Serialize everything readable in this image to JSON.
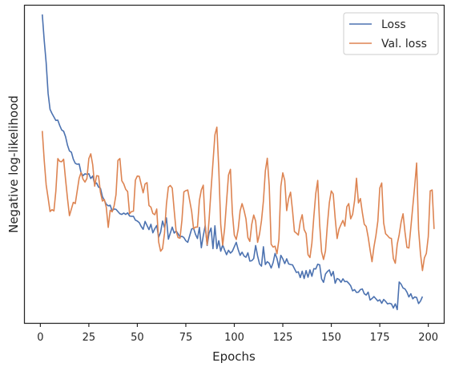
{
  "chart_data": {
    "type": "line",
    "xlabel": "Epochs",
    "ylabel": "Negative log-likelihood",
    "xlim": [
      -8,
      208
    ],
    "ylim": [
      0,
      100
    ],
    "x_ticks": [
      0,
      25,
      50,
      75,
      100,
      125,
      150,
      175,
      200
    ],
    "y_ticks_shown": false,
    "grid": false,
    "legend_position": "top-right",
    "series": [
      {
        "name": "Loss",
        "color": "#4c72b0",
        "x_start": 1,
        "values": [
          97.2,
          89.0,
          82.0,
          72.3,
          67.3,
          66.0,
          64.9,
          63.8,
          63.9,
          62.2,
          60.8,
          60.4,
          58.7,
          56.0,
          54.2,
          53.8,
          51.6,
          50.3,
          50.0,
          50.1,
          47.3,
          46.4,
          47.0,
          46.8,
          47.0,
          45.5,
          46.3,
          43.8,
          44.1,
          42.8,
          42.4,
          39.8,
          38.6,
          37.4,
          36.9,
          37.1,
          35.3,
          35.9,
          35.8,
          35.1,
          34.4,
          34.2,
          34.6,
          34.2,
          34.7,
          33.7,
          33.6,
          33.6,
          32.4,
          32.1,
          31.6,
          30.4,
          29.5,
          32.0,
          30.7,
          29.4,
          31.1,
          28.4,
          29.7,
          30.7,
          27.0,
          28.6,
          32.1,
          30.1,
          33.1,
          26.4,
          28.3,
          30.2,
          28.3,
          29.0,
          28.1,
          27.1,
          27.3,
          26.9,
          25.9,
          25.4,
          27.5,
          29.6,
          29.8,
          27.9,
          26.6,
          30.1,
          23.7,
          27.5,
          30.7,
          24.4,
          28.3,
          29.9,
          23.4,
          30.6,
          23.4,
          25.9,
          22.6,
          24.6,
          23.0,
          21.5,
          22.9,
          22.0,
          22.6,
          24.0,
          25.4,
          23.1,
          21.3,
          22.3,
          21.1,
          20.7,
          22.1,
          19.5,
          19.6,
          20.3,
          24.4,
          21.1,
          18.6,
          17.9,
          24.0,
          18.4,
          19.3,
          18.8,
          17.3,
          19.0,
          21.9,
          20.3,
          17.4,
          21.3,
          20.2,
          18.7,
          20.2,
          18.6,
          18.4,
          18.3,
          17.1,
          15.9,
          16.1,
          14.3,
          16.3,
          14.0,
          16.5,
          14.4,
          16.7,
          14.7,
          17.1,
          17.0,
          18.5,
          18.3,
          13.9,
          12.8,
          15.4,
          16.2,
          16.7,
          14.8,
          16.2,
          12.5,
          14.0,
          13.7,
          12.8,
          13.9,
          13.0,
          13.1,
          12.5,
          11.7,
          10.1,
          10.5,
          9.6,
          9.7,
          10.5,
          10.7,
          9.2,
          8.8,
          9.7,
          7.2,
          7.7,
          8.3,
          7.6,
          6.9,
          7.3,
          6.2,
          7.4,
          6.8,
          6.0,
          6.2,
          6.0,
          4.7,
          6.0,
          4.2,
          12.9,
          12.2,
          11.0,
          10.7,
          9.7,
          8.2,
          9.2,
          7.6,
          8.2,
          8.0,
          6.1,
          6.9,
          8.3
        ]
      },
      {
        "name": "Val. loss",
        "color": "#dd8452",
        "x_start": 1,
        "values": [
          60.5,
          51.2,
          43.5,
          39.4,
          35.1,
          35.7,
          35.3,
          41.6,
          51.8,
          50.9,
          50.8,
          51.6,
          45.2,
          39.2,
          33.8,
          35.9,
          38.0,
          37.6,
          41.6,
          45.6,
          47.4,
          45.3,
          44.4,
          45.5,
          51.8,
          53.3,
          49.8,
          43.1,
          46.4,
          46.3,
          41.1,
          38.4,
          38.9,
          36.4,
          30.1,
          35.5,
          35.0,
          36.8,
          40.4,
          51.2,
          51.8,
          44.8,
          43.8,
          42.1,
          41.4,
          34.4,
          35.1,
          35.2,
          45.0,
          46.3,
          46.2,
          43.6,
          41.0,
          43.8,
          44.2,
          37.0,
          36.5,
          34.5,
          34.1,
          35.9,
          25.5,
          22.6,
          23.4,
          28.2,
          37.4,
          42.8,
          43.3,
          42.5,
          35.5,
          28.9,
          26.9,
          26.7,
          32.4,
          41.3,
          41.7,
          41.9,
          38.5,
          35.2,
          29.7,
          30.2,
          30.2,
          38.6,
          41.9,
          43.4,
          30.5,
          24.6,
          32.6,
          41.9,
          50.6,
          59.3,
          61.7,
          48.5,
          31.0,
          24.5,
          29.7,
          38.2,
          46.6,
          48.4,
          34.7,
          27.7,
          26.3,
          29.5,
          35.3,
          37.6,
          35.5,
          32.8,
          26.9,
          25.7,
          31.1,
          34.0,
          32.1,
          25.4,
          28.0,
          32.2,
          38.4,
          47.9,
          51.9,
          43.3,
          24.8,
          23.9,
          24.2,
          21.8,
          26.3,
          43.1,
          47.3,
          44.9,
          35.4,
          39.2,
          41.2,
          35.5,
          28.8,
          28.3,
          27.7,
          31.9,
          34.1,
          29.4,
          28.2,
          21.5,
          20.6,
          25.2,
          33.5,
          40.8,
          44.9,
          31.0,
          22.4,
          20.0,
          22.7,
          31.0,
          37.9,
          41.6,
          40.6,
          33.0,
          26.6,
          29.6,
          31.0,
          32.3,
          30.5,
          36.6,
          37.6,
          32.8,
          34.2,
          38.5,
          45.6,
          37.8,
          39.2,
          34.8,
          31.1,
          30.4,
          27.1,
          23.0,
          19.3,
          24.0,
          27.5,
          32.1,
          42.5,
          44.1,
          31.5,
          28.1,
          27.5,
          26.8,
          26.6,
          20.3,
          18.8,
          24.8,
          27.8,
          31.8,
          34.4,
          28.6,
          23.8,
          23.6,
          30.0,
          36.6,
          43.1,
          50.4,
          29.4,
          21.7,
          16.5,
          20.5,
          21.9,
          27.2,
          41.6,
          41.9,
          29.6
        ]
      }
    ]
  }
}
